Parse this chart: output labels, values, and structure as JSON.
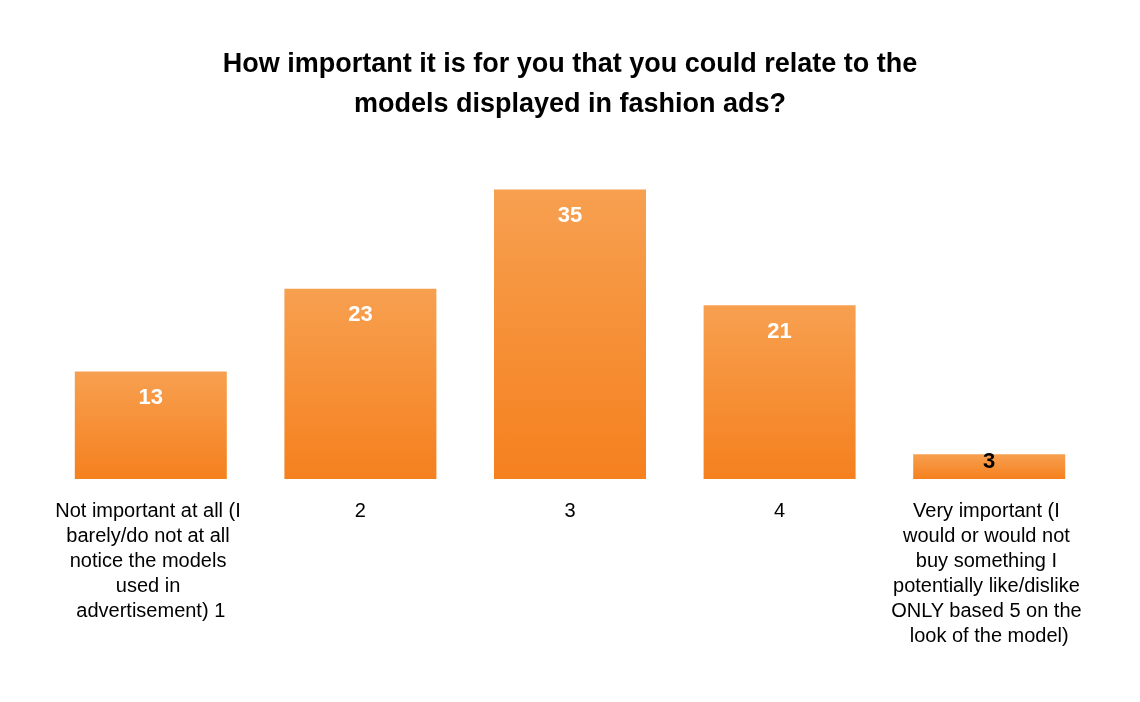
{
  "chart_data": {
    "type": "bar",
    "title": "How important it is for you that you could relate to the\nmodels displayed in fashion ads?",
    "categories": [
      "Not important at all (I barely/do not at all notice the models used in advertisement) 1",
      "2",
      "3",
      "4",
      "Very important (I would or would not buy something I potentially like/dislike ONLY based 5 on the look of the model)"
    ],
    "values": [
      13,
      23,
      35,
      21,
      3
    ],
    "color": "#f5801e",
    "data_labels": true
  }
}
